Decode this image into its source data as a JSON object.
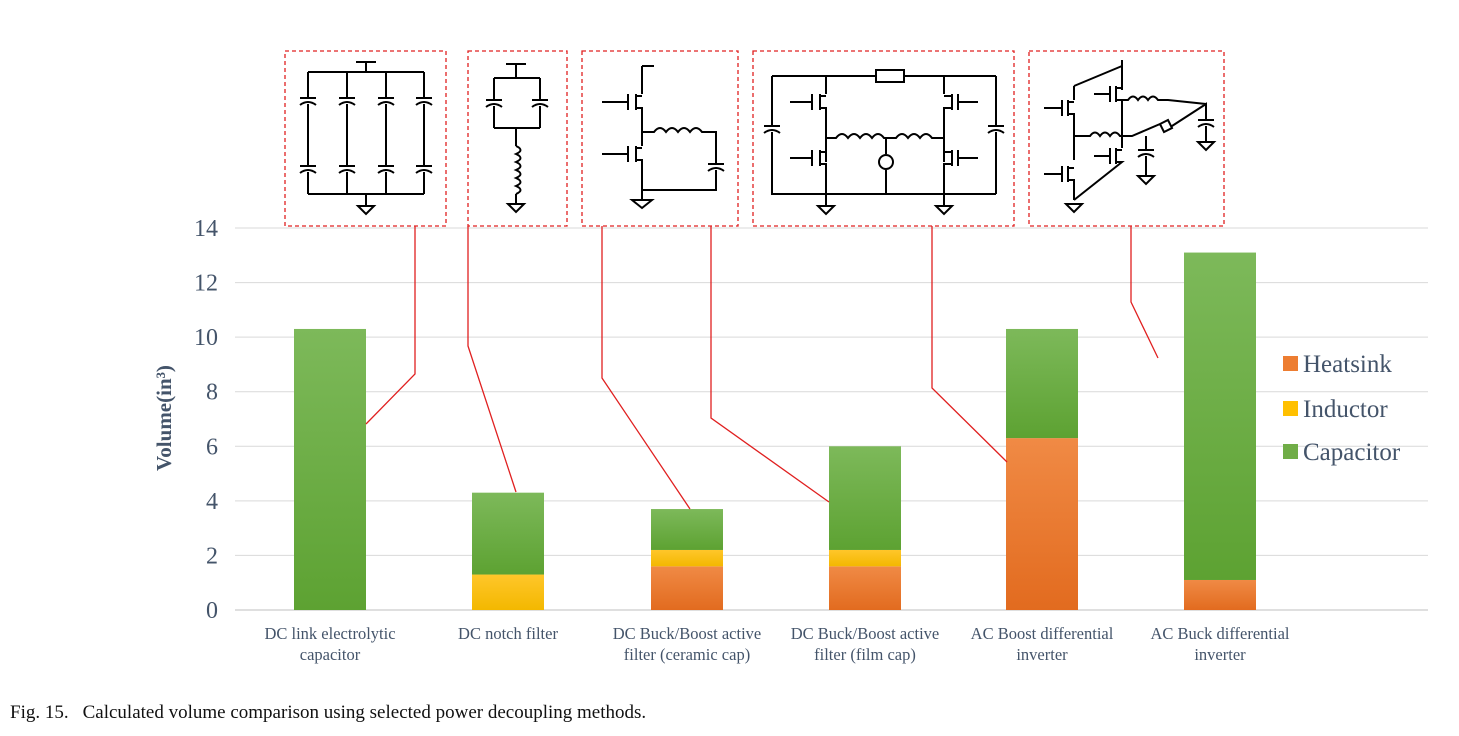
{
  "caption": {
    "label": "Fig. 15.",
    "text": "Calculated volume comparison using selected power decoupling methods."
  },
  "colors": {
    "heatsink": "#ed7d31",
    "inductor": "#ffc000",
    "capacitor": "#70ad47",
    "callout": "#e02020",
    "axis_text": "#44546a",
    "grid": "#d9d9d9"
  },
  "chart_data": {
    "type": "bar",
    "stacked": true,
    "title": "",
    "xlabel": "",
    "ylabel": "Volume(in³)",
    "ylim": [
      0,
      14
    ],
    "yticks": [
      0,
      2,
      4,
      6,
      8,
      10,
      12,
      14
    ],
    "grid": true,
    "legend": "right",
    "categories": [
      [
        "DC link electrolytic",
        "capacitor"
      ],
      [
        "DC notch filter"
      ],
      [
        "DC Buck/Boost active",
        "filter (ceramic cap)"
      ],
      [
        "DC Buck/Boost active",
        "filter (film cap)"
      ],
      [
        "AC Boost differential",
        "inverter"
      ],
      [
        "AC Buck differential",
        "inverter"
      ]
    ],
    "series": [
      {
        "name": "Heatsink",
        "color": "#ed7d31",
        "values": [
          0,
          0,
          1.6,
          1.6,
          6.3,
          1.1
        ]
      },
      {
        "name": "Inductor",
        "color": "#ffc000",
        "values": [
          0,
          1.3,
          0.6,
          0.6,
          0,
          0
        ]
      },
      {
        "name": "Capacitor",
        "color": "#70ad47",
        "values": [
          10.3,
          3.0,
          1.5,
          3.8,
          4.0,
          12.0
        ]
      }
    ]
  }
}
